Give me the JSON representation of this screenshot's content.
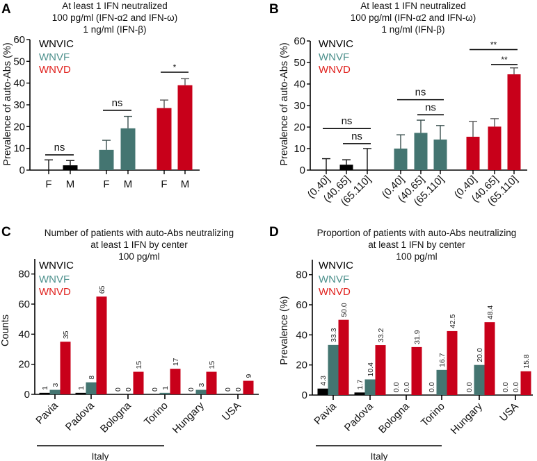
{
  "colors": {
    "WNVIC": "#000000",
    "WNVF": "#447571",
    "WNVD": "#c8001a",
    "legend_WNVF": "#4e918d",
    "legend_WNVD": "#e0201c"
  },
  "legend": [
    "WNVIC",
    "WNVF",
    "WNVD"
  ],
  "chart_data": [
    {
      "panel": "A",
      "type": "bar",
      "title": [
        "At least 1 IFN neutralized",
        "100 pg/ml  (IFN-α2 and IFN-ω)",
        "1 ng/ml  (IFN-β)"
      ],
      "ylabel": "Prevalence of auto-Abs (%)",
      "ylim": [
        0,
        60
      ],
      "yticks": [
        0,
        10,
        20,
        30,
        40,
        50,
        60
      ],
      "categories": [
        "F",
        "M",
        "F",
        "M",
        "F",
        "M"
      ],
      "groups": [
        "WNVIC",
        "WNVIC",
        "WNVF",
        "WNVF",
        "WNVD",
        "WNVD"
      ],
      "values": [
        0,
        2.2,
        9.3,
        19.2,
        28.5,
        39.0
      ],
      "error_upper": [
        4.7,
        4.4,
        13.7,
        24.7,
        32.2,
        42.0
      ],
      "significance": [
        {
          "from": 0,
          "to": 1,
          "y": 7,
          "label": "ns"
        },
        {
          "from": 2,
          "to": 3,
          "y": 27.5,
          "label": "ns"
        },
        {
          "from": 4,
          "to": 5,
          "y": 45,
          "label": "*"
        }
      ]
    },
    {
      "panel": "B",
      "type": "bar",
      "title": [
        "At least 1 IFN neutralized",
        "100 pg/ml  (IFN-α2 and IFN-ω)",
        "1 ng/ml  (IFN-β)"
      ],
      "ylabel": "Prevalence of auto-Abs (%)",
      "ylim": [
        0,
        60
      ],
      "yticks": [
        0,
        10,
        20,
        30,
        40,
        50,
        60
      ],
      "categories": [
        "(0.40]",
        "(40.65]",
        "(65.110]",
        "(0.40]",
        "(40.65]",
        "(65.110]",
        "(0.40]",
        "(40.65]",
        "(65.110]"
      ],
      "groups": [
        "WNVIC",
        "WNVIC",
        "WNVIC",
        "WNVF",
        "WNVF",
        "WNVF",
        "WNVD",
        "WNVD",
        "WNVD"
      ],
      "values": [
        0,
        2.5,
        0,
        10.0,
        17.3,
        14.2,
        15.5,
        20.2,
        44.5
      ],
      "error_upper": [
        5.3,
        4.8,
        10.0,
        16.4,
        23.2,
        20.7,
        22.6,
        23.9,
        47.5
      ],
      "significance": [
        {
          "from": 0,
          "to": 2,
          "y": 19.3,
          "label": "ns"
        },
        {
          "from": 1,
          "to": 2,
          "y": 12.3,
          "label": "ns"
        },
        {
          "from": 3,
          "to": 5,
          "y": 32.7,
          "label": "ns"
        },
        {
          "from": 4,
          "to": 5,
          "y": 25.7,
          "label": "ns"
        },
        {
          "from": 6,
          "to": 8,
          "y": 56,
          "label": "**"
        },
        {
          "from": 7,
          "to": 8,
          "y": 49,
          "label": "**"
        }
      ]
    },
    {
      "panel": "C",
      "type": "bar",
      "title": [
        "Number of patients with auto-Abs neutralizing",
        "at least 1 IFN by center",
        "100 pg/ml"
      ],
      "ylabel": "Counts",
      "ylim": [
        0,
        90
      ],
      "yticks": [
        0,
        20,
        40,
        60,
        80
      ],
      "categories": [
        "Pavia",
        "Padova",
        "Bologna",
        "Torino",
        "Hungary",
        "USA"
      ],
      "group_label": "Italy",
      "series": [
        {
          "name": "WNVIC",
          "values": [
            1,
            1,
            0,
            0,
            0,
            0
          ]
        },
        {
          "name": "WNVF",
          "values": [
            3,
            8,
            0,
            1,
            3,
            0
          ]
        },
        {
          "name": "WNVD",
          "values": [
            35,
            65,
            15,
            17,
            15,
            9
          ]
        }
      ],
      "label_decimals": 0
    },
    {
      "panel": "D",
      "type": "bar",
      "title": [
        "Proportion of patients with auto-Abs neutralizing",
        "at least 1 IFN by center",
        "100 pg/ml"
      ],
      "ylabel": "Prevalence (%)",
      "ylim": [
        0,
        90
      ],
      "yticks": [
        0,
        20,
        40,
        60,
        80
      ],
      "categories": [
        "Pavia",
        "Padova",
        "Bologna",
        "Torino",
        "Hungary",
        "USA"
      ],
      "group_label": "Italy",
      "series": [
        {
          "name": "WNVIC",
          "values": [
            4.3,
            1.7,
            0.0,
            0.0,
            0.0,
            0.0
          ]
        },
        {
          "name": "WNVF",
          "values": [
            33.3,
            10.4,
            0.0,
            16.7,
            20.0,
            0.0
          ]
        },
        {
          "name": "WNVD",
          "values": [
            50.0,
            33.2,
            31.9,
            42.5,
            48.4,
            15.8
          ]
        }
      ],
      "label_decimals": 1
    }
  ]
}
